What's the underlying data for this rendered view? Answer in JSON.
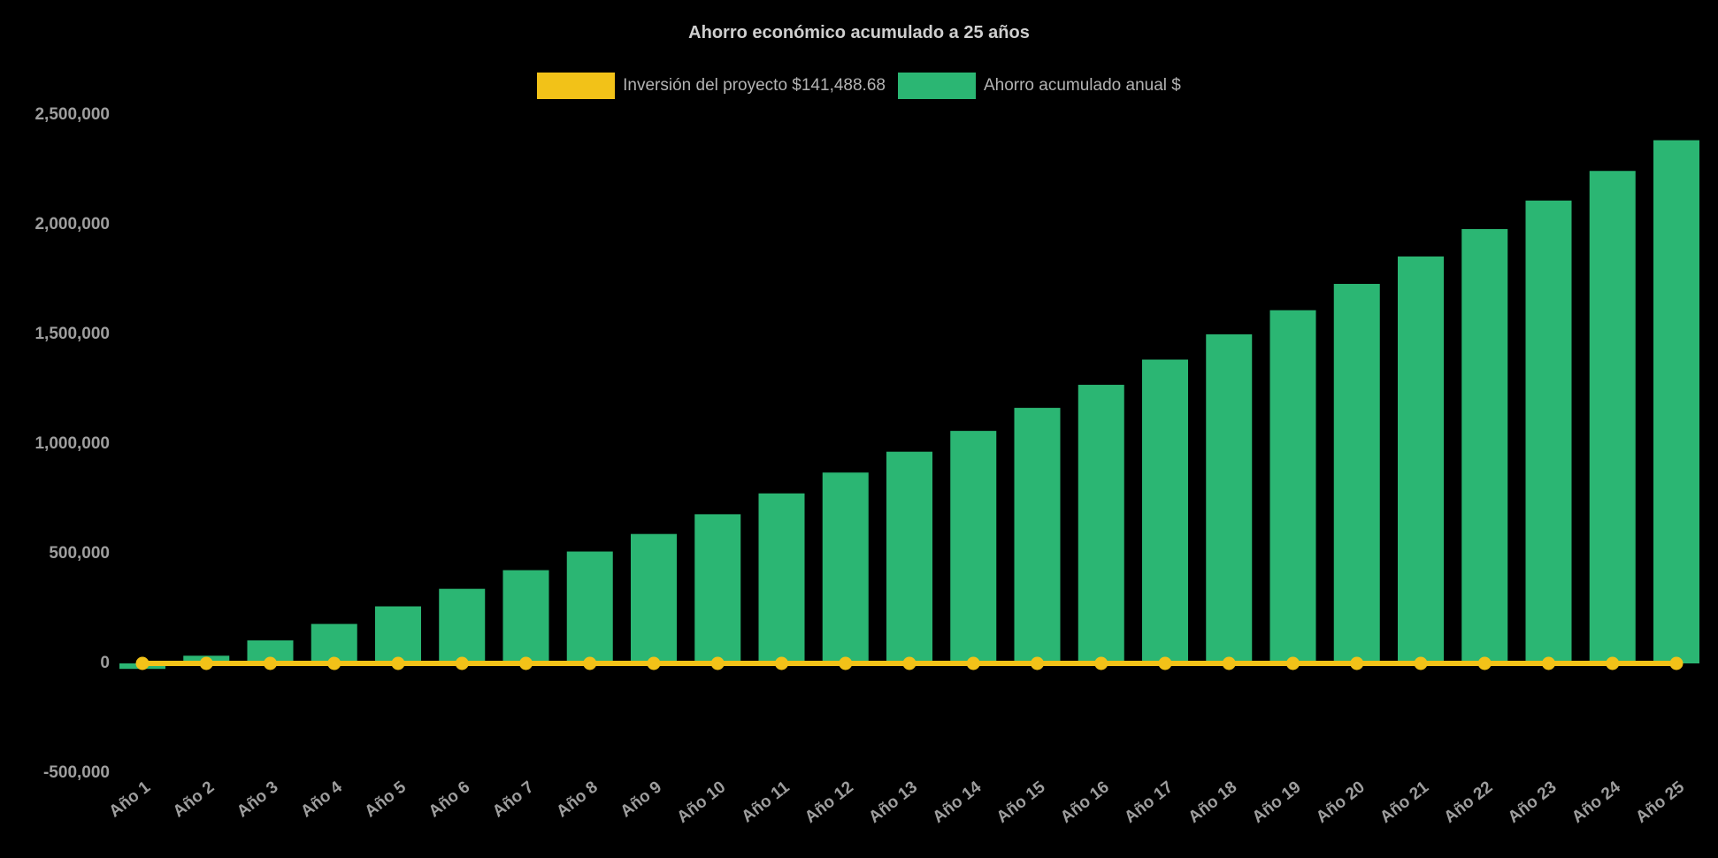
{
  "page": {
    "background": "#000000"
  },
  "chart_data": {
    "type": "bar",
    "title": "Ahorro económico acumulado a 25 años",
    "xlabel": "",
    "ylabel": "",
    "background": "#000000",
    "grid": false,
    "legend_position": "top",
    "ylim": [
      -500000,
      2500000
    ],
    "yticks": [
      -500000,
      0,
      500000,
      1000000,
      1500000,
      2000000,
      2500000
    ],
    "ytick_labels": [
      "-500,000",
      "0",
      "500,000",
      "1,000,000",
      "1,500,000",
      "2,000,000",
      "2,500,000"
    ],
    "categories": [
      "Año 1",
      "Año 2",
      "Año 3",
      "Año 4",
      "Año 5",
      "Año 6",
      "Año 7",
      "Año 8",
      "Año 9",
      "Año 10",
      "Año 11",
      "Año 12",
      "Año 13",
      "Año 14",
      "Año 15",
      "Año 16",
      "Año 17",
      "Año 18",
      "Año 19",
      "Año 20",
      "Año 21",
      "Año 22",
      "Año 23",
      "Año 24",
      "Año 25"
    ],
    "series": [
      {
        "name": "Inversión del proyecto $141,488.68",
        "type": "line",
        "color": "#F2C218",
        "value": 141488.68,
        "constant": true
      },
      {
        "name": "Ahorro acumulado anual $",
        "type": "bar",
        "color": "#2BB673",
        "values": [
          -25000,
          35000,
          105000,
          180000,
          260000,
          340000,
          425000,
          510000,
          590000,
          680000,
          775000,
          870000,
          965000,
          1060000,
          1165000,
          1270000,
          1385000,
          1500000,
          1610000,
          1730000,
          1855000,
          1980000,
          2110000,
          2245000,
          2385000
        ]
      }
    ],
    "layout": {
      "investment_line_drawn_at_baseline": true,
      "x_label_rotation_deg": -38
    }
  }
}
